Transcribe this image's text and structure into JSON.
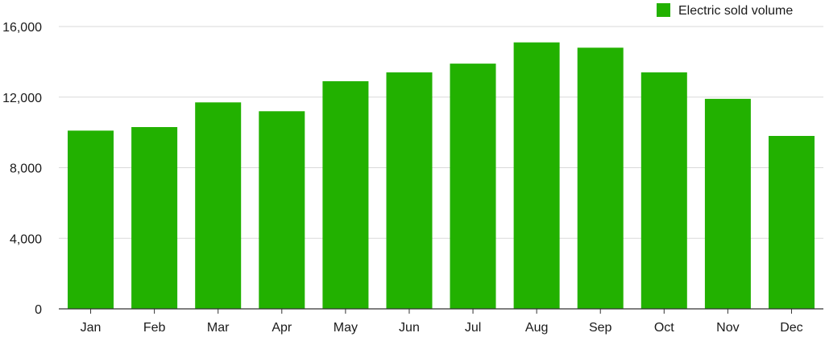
{
  "chart_data": {
    "type": "bar",
    "title": "",
    "xlabel": "",
    "ylabel": "",
    "categories": [
      "Jan",
      "Feb",
      "Mar",
      "Apr",
      "May",
      "Jun",
      "Jul",
      "Aug",
      "Sep",
      "Oct",
      "Nov",
      "Dec"
    ],
    "series": [
      {
        "name": "Electric sold volume",
        "color": "#22b100",
        "values": [
          10100,
          10300,
          11700,
          11200,
          12900,
          13400,
          13900,
          15100,
          14800,
          13400,
          11900,
          9800
        ]
      }
    ],
    "ylim": [
      0,
      16000
    ],
    "y_ticks": [
      0,
      4000,
      8000,
      12000,
      16000
    ],
    "y_tick_labels": [
      "0",
      "4,000",
      "8,000",
      "12,000",
      "16,000"
    ],
    "grid": true,
    "legend_position": "top-right",
    "colors": {
      "bar": "#22b100",
      "gridline": "#d9d9d9",
      "axis": "#333333",
      "text": "#1a1a1a"
    }
  }
}
